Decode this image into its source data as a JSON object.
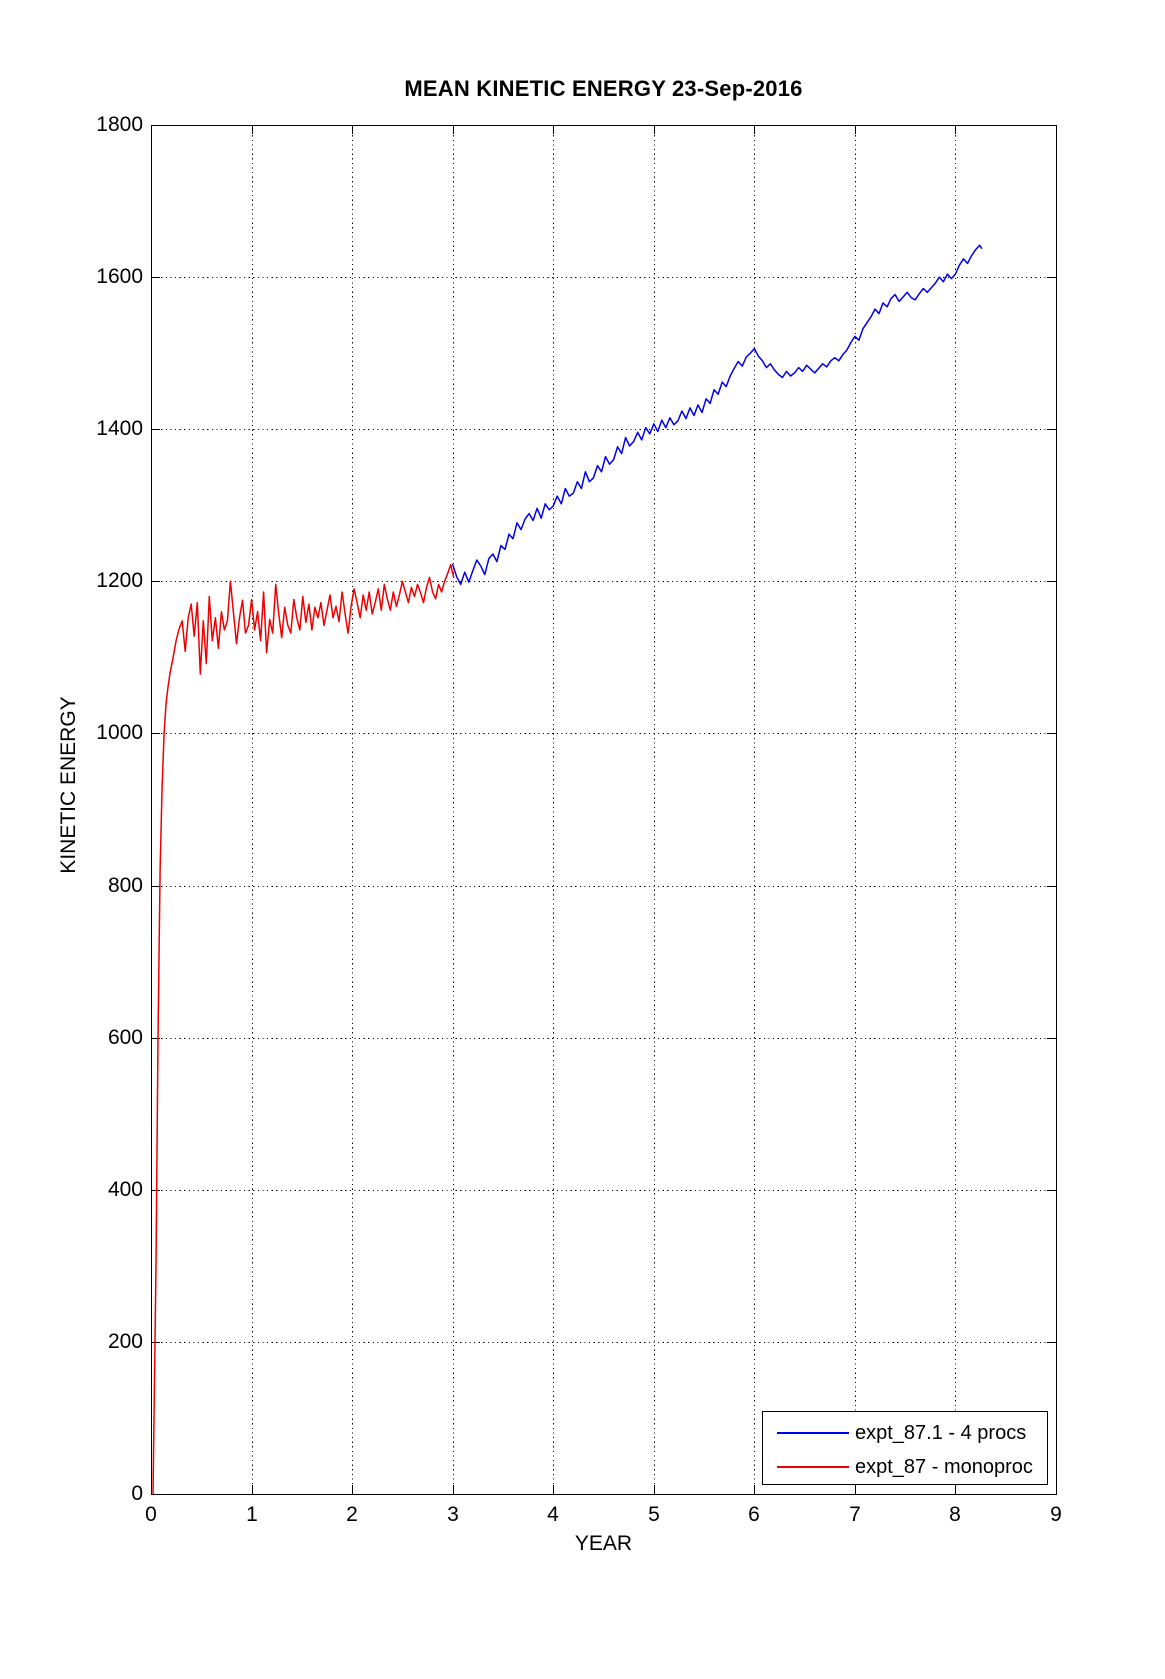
{
  "figure": {
    "background": "#ffffff",
    "grid_color": "#000000",
    "axis_color": "#000000"
  },
  "chart_data": {
    "type": "line",
    "title": "MEAN KINETIC ENERGY 23-Sep-2016",
    "xlabel": "YEAR",
    "ylabel": "KINETIC ENERGY",
    "xlim": [
      0,
      9
    ],
    "ylim": [
      0,
      1800
    ],
    "xticks": [
      0,
      1,
      2,
      3,
      4,
      5,
      6,
      7,
      8,
      9
    ],
    "yticks": [
      0,
      200,
      400,
      600,
      800,
      1000,
      1200,
      1400,
      1600,
      1800
    ],
    "grid": true,
    "grid_style": "dotted",
    "legend_position": "bottom-right",
    "series": [
      {
        "name": "expt_87.1 - 4 procs",
        "color": "#0000ee",
        "points": [
          [
            3.0,
            1222
          ],
          [
            3.04,
            1206
          ],
          [
            3.08,
            1196
          ],
          [
            3.12,
            1212
          ],
          [
            3.16,
            1199
          ],
          [
            3.2,
            1214
          ],
          [
            3.24,
            1228
          ],
          [
            3.28,
            1220
          ],
          [
            3.32,
            1209
          ],
          [
            3.36,
            1230
          ],
          [
            3.4,
            1236
          ],
          [
            3.44,
            1226
          ],
          [
            3.48,
            1247
          ],
          [
            3.52,
            1242
          ],
          [
            3.56,
            1262
          ],
          [
            3.6,
            1256
          ],
          [
            3.64,
            1277
          ],
          [
            3.68,
            1268
          ],
          [
            3.72,
            1282
          ],
          [
            3.76,
            1289
          ],
          [
            3.8,
            1280
          ],
          [
            3.84,
            1296
          ],
          [
            3.88,
            1283
          ],
          [
            3.92,
            1302
          ],
          [
            3.96,
            1294
          ],
          [
            4.0,
            1299
          ],
          [
            4.04,
            1312
          ],
          [
            4.08,
            1302
          ],
          [
            4.12,
            1322
          ],
          [
            4.16,
            1312
          ],
          [
            4.2,
            1316
          ],
          [
            4.24,
            1331
          ],
          [
            4.28,
            1322
          ],
          [
            4.32,
            1344
          ],
          [
            4.36,
            1331
          ],
          [
            4.4,
            1336
          ],
          [
            4.44,
            1352
          ],
          [
            4.48,
            1344
          ],
          [
            4.52,
            1364
          ],
          [
            4.56,
            1354
          ],
          [
            4.6,
            1360
          ],
          [
            4.64,
            1377
          ],
          [
            4.68,
            1368
          ],
          [
            4.72,
            1389
          ],
          [
            4.76,
            1378
          ],
          [
            4.8,
            1384
          ],
          [
            4.84,
            1396
          ],
          [
            4.88,
            1386
          ],
          [
            4.92,
            1402
          ],
          [
            4.96,
            1394
          ],
          [
            5.0,
            1407
          ],
          [
            5.04,
            1397
          ],
          [
            5.08,
            1412
          ],
          [
            5.12,
            1402
          ],
          [
            5.16,
            1415
          ],
          [
            5.2,
            1406
          ],
          [
            5.24,
            1411
          ],
          [
            5.28,
            1424
          ],
          [
            5.32,
            1414
          ],
          [
            5.36,
            1428
          ],
          [
            5.4,
            1418
          ],
          [
            5.44,
            1432
          ],
          [
            5.48,
            1422
          ],
          [
            5.52,
            1440
          ],
          [
            5.56,
            1434
          ],
          [
            5.6,
            1452
          ],
          [
            5.64,
            1446
          ],
          [
            5.68,
            1462
          ],
          [
            5.72,
            1456
          ],
          [
            5.76,
            1470
          ],
          [
            5.8,
            1480
          ],
          [
            5.84,
            1489
          ],
          [
            5.88,
            1483
          ],
          [
            5.92,
            1495
          ],
          [
            5.96,
            1500
          ],
          [
            6.0,
            1506
          ],
          [
            6.04,
            1496
          ],
          [
            6.08,
            1490
          ],
          [
            6.12,
            1481
          ],
          [
            6.16,
            1486
          ],
          [
            6.2,
            1478
          ],
          [
            6.24,
            1472
          ],
          [
            6.28,
            1468
          ],
          [
            6.32,
            1476
          ],
          [
            6.36,
            1470
          ],
          [
            6.4,
            1474
          ],
          [
            6.44,
            1481
          ],
          [
            6.48,
            1476
          ],
          [
            6.52,
            1484
          ],
          [
            6.56,
            1479
          ],
          [
            6.6,
            1474
          ],
          [
            6.64,
            1480
          ],
          [
            6.68,
            1486
          ],
          [
            6.72,
            1482
          ],
          [
            6.76,
            1490
          ],
          [
            6.8,
            1494
          ],
          [
            6.84,
            1490
          ],
          [
            6.88,
            1498
          ],
          [
            6.92,
            1504
          ],
          [
            6.96,
            1514
          ],
          [
            7.0,
            1522
          ],
          [
            7.04,
            1517
          ],
          [
            7.08,
            1532
          ],
          [
            7.12,
            1540
          ],
          [
            7.16,
            1548
          ],
          [
            7.2,
            1558
          ],
          [
            7.24,
            1552
          ],
          [
            7.28,
            1566
          ],
          [
            7.32,
            1561
          ],
          [
            7.36,
            1572
          ],
          [
            7.4,
            1577
          ],
          [
            7.44,
            1568
          ],
          [
            7.48,
            1574
          ],
          [
            7.52,
            1580
          ],
          [
            7.56,
            1573
          ],
          [
            7.6,
            1570
          ],
          [
            7.64,
            1578
          ],
          [
            7.68,
            1585
          ],
          [
            7.72,
            1580
          ],
          [
            7.76,
            1586
          ],
          [
            7.8,
            1592
          ],
          [
            7.84,
            1600
          ],
          [
            7.88,
            1594
          ],
          [
            7.92,
            1604
          ],
          [
            7.96,
            1598
          ],
          [
            8.0,
            1604
          ],
          [
            8.04,
            1616
          ],
          [
            8.08,
            1624
          ],
          [
            8.12,
            1618
          ],
          [
            8.16,
            1628
          ],
          [
            8.2,
            1636
          ],
          [
            8.24,
            1642
          ],
          [
            8.26,
            1638
          ]
        ]
      },
      {
        "name": "expt_87 - monoproc",
        "color": "#ee0000",
        "points": [
          [
            0.02,
            0
          ],
          [
            0.05,
            300
          ],
          [
            0.07,
            600
          ],
          [
            0.09,
            820
          ],
          [
            0.11,
            930
          ],
          [
            0.13,
            1000
          ],
          [
            0.15,
            1040
          ],
          [
            0.17,
            1062
          ],
          [
            0.19,
            1080
          ],
          [
            0.22,
            1100
          ],
          [
            0.25,
            1122
          ],
          [
            0.28,
            1138
          ],
          [
            0.31,
            1148
          ],
          [
            0.34,
            1108
          ],
          [
            0.37,
            1152
          ],
          [
            0.4,
            1170
          ],
          [
            0.43,
            1128
          ],
          [
            0.46,
            1172
          ],
          [
            0.49,
            1078
          ],
          [
            0.52,
            1148
          ],
          [
            0.55,
            1092
          ],
          [
            0.58,
            1180
          ],
          [
            0.61,
            1122
          ],
          [
            0.64,
            1152
          ],
          [
            0.67,
            1112
          ],
          [
            0.7,
            1160
          ],
          [
            0.73,
            1136
          ],
          [
            0.76,
            1148
          ],
          [
            0.79,
            1200
          ],
          [
            0.82,
            1158
          ],
          [
            0.85,
            1118
          ],
          [
            0.88,
            1152
          ],
          [
            0.91,
            1175
          ],
          [
            0.94,
            1132
          ],
          [
            0.97,
            1142
          ],
          [
            1.0,
            1176
          ],
          [
            1.03,
            1136
          ],
          [
            1.06,
            1160
          ],
          [
            1.09,
            1122
          ],
          [
            1.12,
            1186
          ],
          [
            1.15,
            1106
          ],
          [
            1.18,
            1150
          ],
          [
            1.21,
            1132
          ],
          [
            1.24,
            1196
          ],
          [
            1.27,
            1158
          ],
          [
            1.3,
            1126
          ],
          [
            1.33,
            1166
          ],
          [
            1.36,
            1142
          ],
          [
            1.39,
            1132
          ],
          [
            1.42,
            1176
          ],
          [
            1.45,
            1152
          ],
          [
            1.48,
            1136
          ],
          [
            1.51,
            1180
          ],
          [
            1.54,
            1146
          ],
          [
            1.57,
            1170
          ],
          [
            1.6,
            1136
          ],
          [
            1.63,
            1166
          ],
          [
            1.66,
            1152
          ],
          [
            1.69,
            1172
          ],
          [
            1.72,
            1142
          ],
          [
            1.75,
            1162
          ],
          [
            1.78,
            1182
          ],
          [
            1.81,
            1152
          ],
          [
            1.84,
            1167
          ],
          [
            1.87,
            1147
          ],
          [
            1.9,
            1186
          ],
          [
            1.93,
            1157
          ],
          [
            1.96,
            1132
          ],
          [
            1.99,
            1167
          ],
          [
            2.02,
            1190
          ],
          [
            2.05,
            1172
          ],
          [
            2.08,
            1152
          ],
          [
            2.11,
            1182
          ],
          [
            2.14,
            1162
          ],
          [
            2.17,
            1186
          ],
          [
            2.2,
            1157
          ],
          [
            2.23,
            1172
          ],
          [
            2.26,
            1190
          ],
          [
            2.29,
            1162
          ],
          [
            2.32,
            1196
          ],
          [
            2.35,
            1177
          ],
          [
            2.38,
            1162
          ],
          [
            2.41,
            1186
          ],
          [
            2.44,
            1167
          ],
          [
            2.47,
            1182
          ],
          [
            2.5,
            1200
          ],
          [
            2.53,
            1186
          ],
          [
            2.56,
            1172
          ],
          [
            2.59,
            1192
          ],
          [
            2.62,
            1180
          ],
          [
            2.65,
            1196
          ],
          [
            2.68,
            1185
          ],
          [
            2.71,
            1172
          ],
          [
            2.74,
            1192
          ],
          [
            2.77,
            1205
          ],
          [
            2.8,
            1186
          ],
          [
            2.83,
            1177
          ],
          [
            2.86,
            1196
          ],
          [
            2.89,
            1186
          ],
          [
            2.92,
            1200
          ],
          [
            2.95,
            1210
          ],
          [
            2.98,
            1222
          ],
          [
            3.01,
            1205
          ]
        ]
      }
    ]
  }
}
